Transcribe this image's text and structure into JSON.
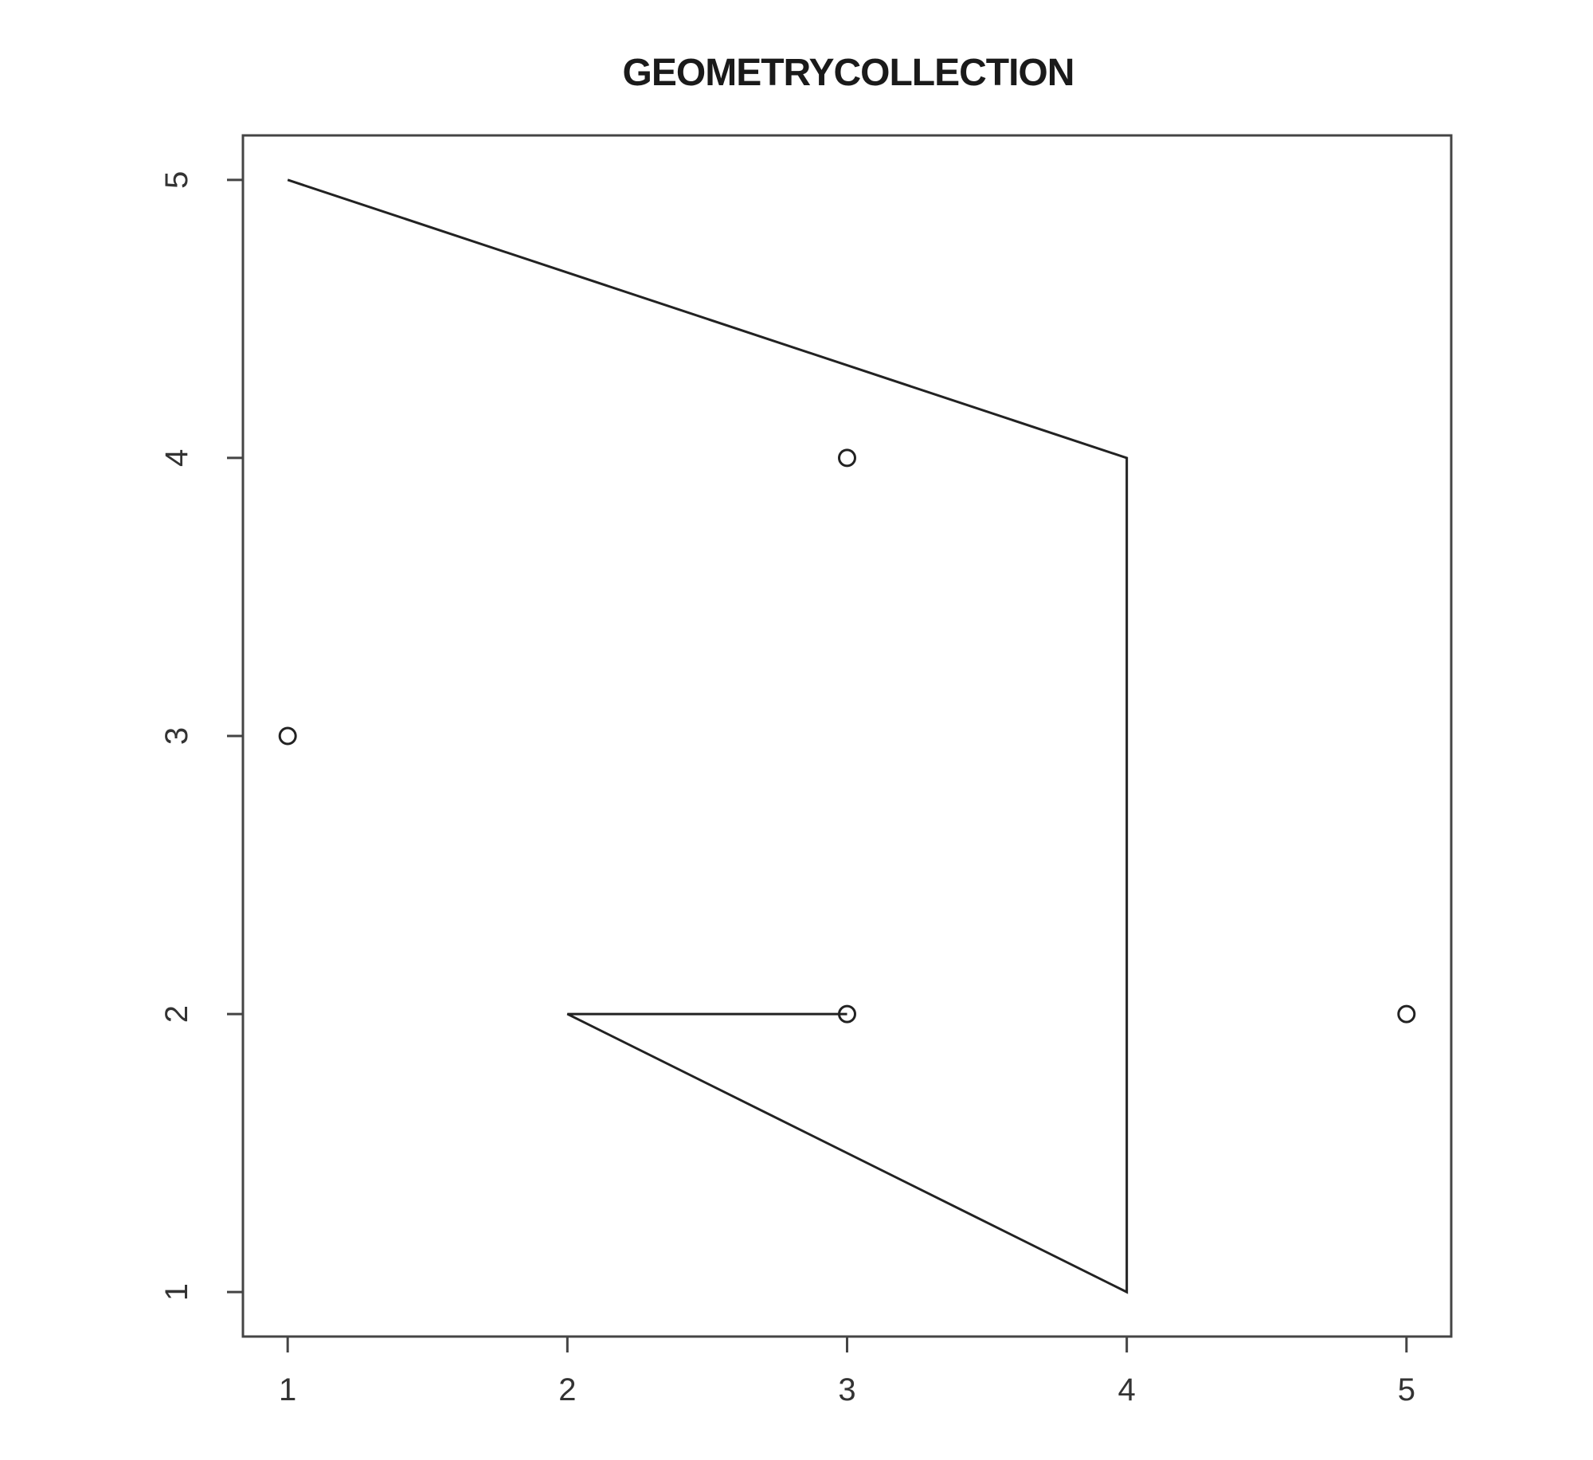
{
  "chart_data": {
    "type": "scatter",
    "title": "GEOMETRYCOLLECTION",
    "xlabel": "",
    "ylabel": "",
    "xlim": [
      0.84,
      5.16
    ],
    "ylim": [
      0.84,
      5.16
    ],
    "x_ticks": [
      "1",
      "2",
      "3",
      "4",
      "5"
    ],
    "y_ticks": [
      "1",
      "2",
      "3",
      "4",
      "5"
    ],
    "grid": false,
    "points": [
      {
        "x": 1,
        "y": 3
      },
      {
        "x": 3,
        "y": 4
      },
      {
        "x": 3,
        "y": 2
      },
      {
        "x": 5,
        "y": 2
      }
    ],
    "lines": [
      {
        "path": [
          [
            1,
            5
          ],
          [
            4,
            4
          ],
          [
            4,
            1
          ],
          [
            2,
            2
          ],
          [
            3,
            2
          ]
        ]
      }
    ]
  }
}
